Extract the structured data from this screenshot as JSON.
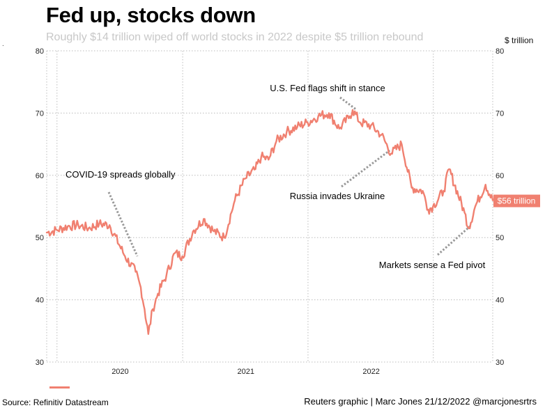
{
  "header": {
    "title": "Fed up, stocks down",
    "subtitle": "Roughly $14 trillion wiped off world stocks in 2022 despite $5 trillion rebound",
    "unit_label": "$ trillion",
    "stray_mark": "."
  },
  "footer": {
    "source": "Source: Refinitiv Datastream",
    "credit": "Reuters graphic | Marc Jones 21/12/2022 @marcjonesrtrs"
  },
  "colors": {
    "line": "#f08070",
    "label_bg": "#f08070",
    "grid": "#bbbbbb",
    "annotation": "#999999"
  },
  "chart_data": {
    "type": "line",
    "title": "Fed up, stocks down",
    "subtitle": "Roughly $14 trillion wiped off world stocks in 2022 despite $5 trillion rebound",
    "ylabel": "$ trillion",
    "ylim": [
      30,
      80
    ],
    "yticks": [
      30,
      40,
      50,
      60,
      70,
      80
    ],
    "xlim": [
      "2019-06-01",
      "2022-12-21"
    ],
    "xticks": [
      {
        "label": "2020",
        "date": "2020-01-01"
      },
      {
        "label": "2021",
        "date": "2021-01-01"
      },
      {
        "label": "2022",
        "date": "2022-01-01"
      }
    ],
    "vertical_grid_dates": [
      "2019-07-01",
      "2020-07-01",
      "2021-07-01",
      "2022-07-01"
    ],
    "grid": true,
    "end_label": "$56 trillion",
    "series": [
      {
        "name": "",
        "x": [
          "2019-06-01",
          "2019-07-01",
          "2019-08-01",
          "2019-09-01",
          "2019-10-01",
          "2019-11-01",
          "2019-12-01",
          "2020-01-15",
          "2020-02-15",
          "2020-03-01",
          "2020-03-12",
          "2020-03-23",
          "2020-04-05",
          "2020-04-20",
          "2020-05-15",
          "2020-06-08",
          "2020-06-30",
          "2020-07-31",
          "2020-08-31",
          "2020-09-30",
          "2020-10-30",
          "2020-11-30",
          "2020-12-31",
          "2021-01-29",
          "2021-02-15",
          "2021-03-08",
          "2021-03-31",
          "2021-04-30",
          "2021-05-31",
          "2021-06-30",
          "2021-07-31",
          "2021-08-31",
          "2021-09-30",
          "2021-10-31",
          "2021-11-08",
          "2021-11-30",
          "2021-12-31",
          "2022-01-31",
          "2022-02-28",
          "2022-03-31",
          "2022-04-29",
          "2022-05-31",
          "2022-06-16",
          "2022-06-30",
          "2022-07-31",
          "2022-08-16",
          "2022-09-30",
          "2022-10-12",
          "2022-10-31",
          "2022-11-30",
          "2022-12-21"
        ],
        "values": [
          50.8,
          51.2,
          51.8,
          52.0,
          51.5,
          52.2,
          52.0,
          47.0,
          44.5,
          42.0,
          38.5,
          34.5,
          38.5,
          41.0,
          44.0,
          47.5,
          47.0,
          51.0,
          53.0,
          51.0,
          50.0,
          56.0,
          59.5,
          61.0,
          63.0,
          62.5,
          65.5,
          67.0,
          67.8,
          68.5,
          69.5,
          70.0,
          67.5,
          69.5,
          70.5,
          68.5,
          68.0,
          66.5,
          63.5,
          65.0,
          58.0,
          57.5,
          54.5,
          55.0,
          57.5,
          61.0,
          54.0,
          51.5,
          55.0,
          58.5,
          56.0
        ]
      }
    ],
    "annotations": [
      {
        "text": "COVID-19 spreads globally",
        "date": "2020-02-20",
        "value": 47
      },
      {
        "text": "U.S. Fed flags shift in stance",
        "date": "2021-11-20",
        "value": 70.5
      },
      {
        "text": "Russia invades Ukraine",
        "date": "2022-02-24",
        "value": 64
      },
      {
        "text": "Markets sense a Fed pivot",
        "date": "2022-10-20",
        "value": 52
      }
    ]
  }
}
